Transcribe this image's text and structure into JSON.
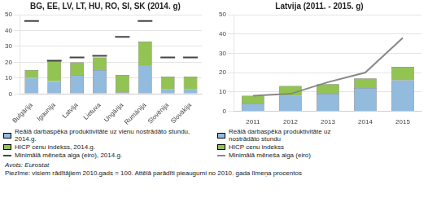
{
  "chart_data": [
    {
      "type": "bar",
      "title": "BG, EE, LV, LT, HU, RO, SI, SK (2014. g)",
      "categories": [
        "Bulgārija",
        "Igaunija",
        "Latvija",
        "Lietuva",
        "Ungārija",
        "Rumānija",
        "Slovēnija",
        "Slovākija"
      ],
      "series": [
        {
          "name": "Reālā darbaspēka produktivitāte uz vienu nostrādāto stundu, 2014.g.",
          "color": "#92BBDD",
          "values": [
            10,
            8,
            12,
            15,
            1,
            18,
            3,
            3
          ]
        },
        {
          "name": "HICP cenu indekss, 2014.g.",
          "color": "#92C353",
          "values": [
            5,
            13,
            8,
            8,
            11,
            15,
            8,
            8
          ]
        },
        {
          "name": "Minimālā mēneša alga (eiro), 2014.g.",
          "color": "#444444",
          "type": "line",
          "marker": "dash",
          "line_style": "none",
          "values": [
            46,
            21,
            23,
            24,
            36,
            46,
            23,
            23
          ]
        }
      ],
      "stacked": true,
      "ylim": [
        0,
        50
      ],
      "yticks": [
        0,
        10,
        20,
        30,
        40,
        50
      ],
      "grid": true,
      "legend": "bottom"
    },
    {
      "type": "bar",
      "title": "Latvija (2011. - 2015. g)",
      "categories": [
        "2011",
        "2012",
        "2013",
        "2014",
        "2015"
      ],
      "series": [
        {
          "name": "Reālā darbaspēka produktivitāte uz\nnostrādāto stundu",
          "color": "#92BBDD",
          "values": [
            4,
            8,
            9,
            12,
            16
          ]
        },
        {
          "name": "HICP cenu indekss",
          "color": "#92C353",
          "values": [
            4,
            5,
            5,
            5,
            7
          ]
        },
        {
          "name": "Minimālā mēneša alga (eiro)",
          "color": "#888888",
          "type": "line",
          "marker": "none",
          "line_style": "solid",
          "values": [
            8,
            9,
            15,
            20,
            38
          ]
        }
      ],
      "stacked": true,
      "ylim": [
        0,
        50
      ],
      "yticks": [
        0,
        10,
        20,
        30,
        40,
        50
      ],
      "grid": true,
      "legend": "bottom"
    }
  ],
  "annotations": [
    "Avots: Eurostat",
    "Piezīme: visiem rādītājiem 2010.gads = 100. Attēlā parādīti pieaugumi no 2010. gada līmeņa procentos"
  ]
}
